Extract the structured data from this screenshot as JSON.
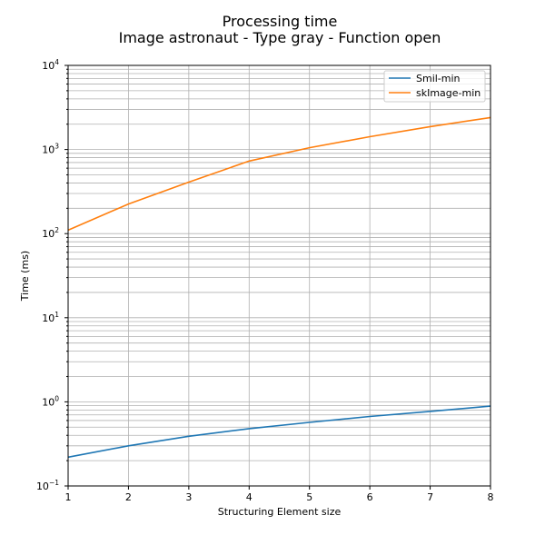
{
  "chart_data": {
    "type": "line",
    "title": "Processing time",
    "subtitle": "Image astronaut - Type gray - Function open",
    "xlabel": "Structuring Element size",
    "ylabel": "Time (ms)",
    "xlim": [
      1,
      8
    ],
    "ylim": [
      0.1,
      10000
    ],
    "yscale": "log",
    "grid": "major and minor",
    "legend_position": "top-right",
    "x": [
      1,
      2,
      3,
      4,
      5,
      6,
      7,
      8
    ],
    "x_tick_labels": [
      "1",
      "2",
      "3",
      "4",
      "5",
      "6",
      "7",
      "8"
    ],
    "y_tick_labels": [
      {
        "base": "10",
        "exp": "−1",
        "value": 0.1
      },
      {
        "base": "10",
        "exp": "0",
        "value": 1
      },
      {
        "base": "10",
        "exp": "1",
        "value": 10
      },
      {
        "base": "10",
        "exp": "2",
        "value": 100
      },
      {
        "base": "10",
        "exp": "3",
        "value": 1000
      },
      {
        "base": "10",
        "exp": "4",
        "value": 10000
      }
    ],
    "series": [
      {
        "name": "Smil-min",
        "color": "#1f77b4",
        "values": [
          0.22,
          0.3,
          0.39,
          0.48,
          0.57,
          0.67,
          0.77,
          0.89
        ]
      },
      {
        "name": "skImage-min",
        "color": "#ff7f0e",
        "values": [
          110,
          225,
          410,
          730,
          1050,
          1420,
          1870,
          2400
        ]
      }
    ]
  }
}
